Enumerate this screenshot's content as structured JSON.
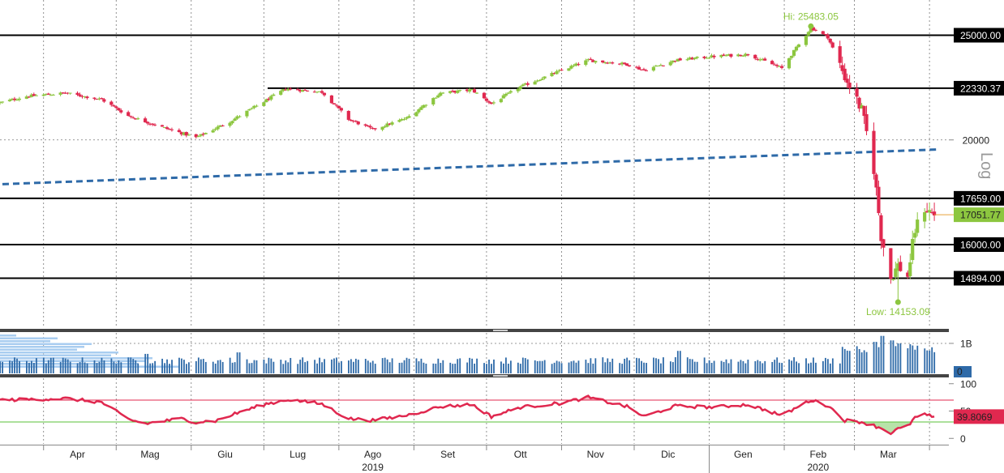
{
  "chart_data": [
    {
      "type": "candlestick",
      "panel": "price",
      "scale": "log",
      "scale_label": "Log",
      "ylim": [
        13000,
        26500
      ],
      "y_ticks": [
        {
          "value": 25000,
          "label": "25000.00",
          "boxed": true
        },
        {
          "value": 22330.37,
          "label": "22330.37",
          "boxed": true
        },
        {
          "value": 20000,
          "label": "20000",
          "boxed": false
        },
        {
          "value": 17659,
          "label": "17659.00",
          "boxed": true
        },
        {
          "value": 16000,
          "label": "16000.00",
          "boxed": true
        },
        {
          "value": 14894,
          "label": "14894.00",
          "boxed": true
        }
      ],
      "horizontal_levels": [
        25000,
        22330.37,
        17659,
        16000,
        14894
      ],
      "last_price": {
        "value": 17051.77,
        "label": "17051.77",
        "color": "#8cc63f"
      },
      "annotations": [
        {
          "label": "Hi: 25483.05",
          "value": 25483.05,
          "date": "2020-02-12"
        },
        {
          "label": "Low: 14153.09",
          "value": 14153.09,
          "date": "2020-03-19"
        }
      ],
      "trendline": {
        "color": "#2e6aa8",
        "style": "dashed",
        "from": {
          "date": "2019-03-15",
          "value": 18200
        },
        "to": {
          "date": "2020-04-05",
          "value": 19600
        }
      },
      "up_color": "#8cc63f",
      "down_color": "#e0284f",
      "series_points": [
        {
          "date": "2019-03-14",
          "value": 21650
        },
        {
          "date": "2019-03-25",
          "value": 21950
        },
        {
          "date": "2019-04-10",
          "value": 22100
        },
        {
          "date": "2019-04-25",
          "value": 21800
        },
        {
          "date": "2019-05-06",
          "value": 21050
        },
        {
          "date": "2019-05-20",
          "value": 20550
        },
        {
          "date": "2019-06-03",
          "value": 20100
        },
        {
          "date": "2019-06-17",
          "value": 20800
        },
        {
          "date": "2019-07-01",
          "value": 21700
        },
        {
          "date": "2019-07-10",
          "value": 22300
        },
        {
          "date": "2019-07-25",
          "value": 22150
        },
        {
          "date": "2019-08-05",
          "value": 20900
        },
        {
          "date": "2019-08-15",
          "value": 20450
        },
        {
          "date": "2019-08-29",
          "value": 20950
        },
        {
          "date": "2019-09-12",
          "value": 22100
        },
        {
          "date": "2019-09-25",
          "value": 22250
        },
        {
          "date": "2019-10-03",
          "value": 21600
        },
        {
          "date": "2019-10-15",
          "value": 22400
        },
        {
          "date": "2019-10-31",
          "value": 23150
        },
        {
          "date": "2019-11-12",
          "value": 23700
        },
        {
          "date": "2019-11-28",
          "value": 23500
        },
        {
          "date": "2019-12-05",
          "value": 23200
        },
        {
          "date": "2019-12-18",
          "value": 23700
        },
        {
          "date": "2020-01-03",
          "value": 23900
        },
        {
          "date": "2020-01-17",
          "value": 24000
        },
        {
          "date": "2020-01-31",
          "value": 23300
        },
        {
          "date": "2020-02-07",
          "value": 24500
        },
        {
          "date": "2020-02-12",
          "value": 25400
        },
        {
          "date": "2020-02-19",
          "value": 24900
        },
        {
          "date": "2020-02-26",
          "value": 22900
        },
        {
          "date": "2020-03-04",
          "value": 21300
        },
        {
          "date": "2020-03-09",
          "value": 18800
        },
        {
          "date": "2020-03-12",
          "value": 16300
        },
        {
          "date": "2020-03-16",
          "value": 14900
        },
        {
          "date": "2020-03-19",
          "value": 15300
        },
        {
          "date": "2020-03-23",
          "value": 14950
        },
        {
          "date": "2020-03-26",
          "value": 16500
        },
        {
          "date": "2020-03-30",
          "value": 17300
        },
        {
          "date": "2020-04-03",
          "value": 17051.77
        }
      ],
      "x_axis": {
        "months": [
          {
            "label": "Apr",
            "date": "2019-04-15"
          },
          {
            "label": "Mag",
            "date": "2019-05-15"
          },
          {
            "label": "Giu",
            "date": "2019-06-15"
          },
          {
            "label": "Lug",
            "date": "2019-07-15"
          },
          {
            "label": "Ago",
            "date": "2019-08-15"
          },
          {
            "label": "Set",
            "date": "2019-09-15"
          },
          {
            "label": "Ott",
            "date": "2019-10-15"
          },
          {
            "label": "Nov",
            "date": "2019-11-15"
          },
          {
            "label": "Dic",
            "date": "2019-12-15"
          },
          {
            "label": "Gen",
            "date": "2020-01-15"
          },
          {
            "label": "Feb",
            "date": "2020-02-15"
          },
          {
            "label": "Mar",
            "date": "2020-03-15"
          }
        ],
        "years": [
          {
            "label": "2019",
            "date": "2019-08-15"
          },
          {
            "label": "2020",
            "date": "2020-02-15"
          }
        ]
      }
    },
    {
      "type": "bar",
      "panel": "volume",
      "color": "#2e6aa8",
      "y_ticks": [
        {
          "value": 1,
          "label": "1B"
        }
      ],
      "last_value": {
        "value": 0,
        "label": "0"
      },
      "typical_value": 0.45,
      "spike_values": [
        {
          "date": "2019-05-13",
          "value": 0.65
        },
        {
          "date": "2019-06-21",
          "value": 0.7
        },
        {
          "date": "2019-12-20",
          "value": 0.75
        },
        {
          "date": "2020-03-09",
          "value": 1.05
        },
        {
          "date": "2020-03-13",
          "value": 1.25
        },
        {
          "date": "2020-03-16",
          "value": 1.1
        },
        {
          "date": "2020-03-20",
          "value": 1.0
        }
      ],
      "unit": "B"
    },
    {
      "type": "line",
      "panel": "rsi",
      "color": "#e0284f",
      "ylim": [
        -10,
        110
      ],
      "y_ticks": [
        {
          "value": 100,
          "label": "100"
        },
        {
          "value": 50,
          "label": "50"
        },
        {
          "value": 0,
          "label": "0"
        }
      ],
      "overbought": 70,
      "oversold": 30,
      "last_value": {
        "value": 39.8069,
        "label": "39.8069"
      },
      "series_points": [
        {
          "date": "2019-03-14",
          "value": 70
        },
        {
          "date": "2019-04-10",
          "value": 73
        },
        {
          "date": "2019-04-25",
          "value": 66
        },
        {
          "date": "2019-05-06",
          "value": 35
        },
        {
          "date": "2019-05-13",
          "value": 27
        },
        {
          "date": "2019-05-28",
          "value": 36
        },
        {
          "date": "2019-06-03",
          "value": 30
        },
        {
          "date": "2019-06-11",
          "value": 32
        },
        {
          "date": "2019-06-21",
          "value": 48
        },
        {
          "date": "2019-07-01",
          "value": 62
        },
        {
          "date": "2019-07-11",
          "value": 71
        },
        {
          "date": "2019-07-25",
          "value": 63
        },
        {
          "date": "2019-08-05",
          "value": 36
        },
        {
          "date": "2019-08-15",
          "value": 33
        },
        {
          "date": "2019-08-29",
          "value": 42
        },
        {
          "date": "2019-09-12",
          "value": 58
        },
        {
          "date": "2019-09-25",
          "value": 62
        },
        {
          "date": "2019-10-03",
          "value": 40
        },
        {
          "date": "2019-10-15",
          "value": 57
        },
        {
          "date": "2019-10-31",
          "value": 64
        },
        {
          "date": "2019-11-12",
          "value": 75
        },
        {
          "date": "2019-11-28",
          "value": 58
        },
        {
          "date": "2019-12-05",
          "value": 40
        },
        {
          "date": "2019-12-18",
          "value": 59
        },
        {
          "date": "2020-01-03",
          "value": 57
        },
        {
          "date": "2020-01-17",
          "value": 62
        },
        {
          "date": "2020-01-31",
          "value": 42
        },
        {
          "date": "2020-02-12",
          "value": 70
        },
        {
          "date": "2020-02-19",
          "value": 60
        },
        {
          "date": "2020-02-26",
          "value": 33
        },
        {
          "date": "2020-03-04",
          "value": 30
        },
        {
          "date": "2020-03-12",
          "value": 19
        },
        {
          "date": "2020-03-16",
          "value": 10
        },
        {
          "date": "2020-03-19",
          "value": 17
        },
        {
          "date": "2020-03-23",
          "value": 22
        },
        {
          "date": "2020-03-26",
          "value": 38
        },
        {
          "date": "2020-03-30",
          "value": 43
        },
        {
          "date": "2020-04-03",
          "value": 39.8069
        }
      ]
    }
  ]
}
